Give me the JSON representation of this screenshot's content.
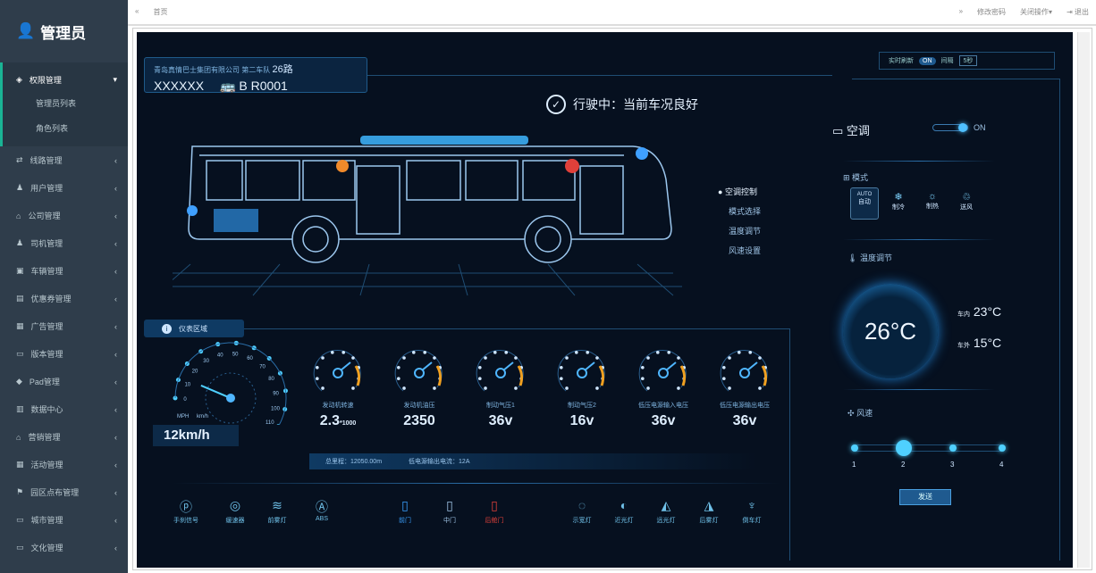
{
  "sidebar": {
    "brand": "管理员",
    "active": {
      "label": "权限管理",
      "children": [
        "管理员列表",
        "角色列表"
      ]
    },
    "items": [
      "线路管理",
      "用户管理",
      "公司管理",
      "司机管理",
      "车辆管理",
      "优惠券管理",
      "广告管理",
      "版本管理",
      "Pad管理",
      "数据中心",
      "营销管理",
      "活动管理",
      "园区点布管理",
      "城市管理",
      "文化管理"
    ]
  },
  "topbar": {
    "tab": "首页",
    "change_password": "修改密码",
    "close_ops": "关闭操作▾",
    "logout": "退出"
  },
  "vehicle": {
    "company": "青岛真情巴士集团有限公司",
    "team": "第二车队",
    "route": "26路",
    "driver": "XXXXXX",
    "plate": "B R0001"
  },
  "refresh": {
    "label": "实时刷新",
    "toggle": "ON",
    "interval_label": "间隔",
    "interval": "5秒"
  },
  "status": "行驶中：当前车况良好",
  "menu": [
    "空调控制",
    "模式选择",
    "温度调节",
    "风速设置"
  ],
  "section_title": "仪表区域",
  "speed": {
    "value": "12km/h",
    "units": [
      "MPH",
      "km/h"
    ],
    "ticks": [
      "0",
      "10",
      "20",
      "30",
      "40",
      "50",
      "60",
      "70",
      "80",
      "90",
      "100",
      "110",
      "120"
    ],
    "current": 12
  },
  "gauges": [
    {
      "label": "发动机转速",
      "value": "2.3",
      "unit": "*1000"
    },
    {
      "label": "发动机油压",
      "value": "2350",
      "unit": ""
    },
    {
      "label": "制动气压1",
      "value": "36v",
      "unit": ""
    },
    {
      "label": "制动气压2",
      "value": "16v",
      "unit": ""
    },
    {
      "label": "低压电源输入电压",
      "value": "36v",
      "unit": ""
    },
    {
      "label": "低压电源输出电压",
      "value": "36v",
      "unit": ""
    }
  ],
  "info": {
    "mileage": "总里程：12050.00m",
    "current": "低电源输出电流：12A"
  },
  "indicators": [
    {
      "label": "手刹信号",
      "icon": "handbrake-icon",
      "color": "#6fc0e8"
    },
    {
      "label": "缓速器",
      "icon": "retarder-icon",
      "color": "#6fc0e8"
    },
    {
      "label": "前雾灯",
      "icon": "fog-light-icon",
      "color": "#6fc0e8"
    },
    {
      "label": "ABS",
      "icon": "abs-icon",
      "color": "#6fc0e8"
    },
    {
      "label": "前门",
      "icon": "door-icon",
      "color": "#3aa0ff"
    },
    {
      "label": "中门",
      "icon": "door-icon",
      "color": "#9fc4e6"
    },
    {
      "label": "后舱门",
      "icon": "door-icon",
      "color": "#e0403a"
    },
    {
      "label": "示宽灯",
      "icon": "width-light-icon",
      "color": "#6fc0e8"
    },
    {
      "label": "近光灯",
      "icon": "low-beam-icon",
      "color": "#6fc0e8"
    },
    {
      "label": "远光灯",
      "icon": "high-beam-icon",
      "color": "#6fc0e8"
    },
    {
      "label": "后雾灯",
      "icon": "rear-fog-icon",
      "color": "#6fc0e8"
    },
    {
      "label": "倒车灯",
      "icon": "reverse-light-icon",
      "color": "#6fc0e8"
    }
  ],
  "ac": {
    "title": "空调",
    "power": "ON",
    "mode_title": "模式",
    "modes": [
      {
        "top": "AUTO",
        "label": "自动",
        "selected": true
      },
      {
        "top": "❄",
        "label": "制冷"
      },
      {
        "top": "☼",
        "label": "制热"
      },
      {
        "top": "♲",
        "label": "送风"
      }
    ],
    "temp_title": "温度调节",
    "set_temp": "26°C",
    "inside_label": "车内",
    "inside": "23°C",
    "outside_label": "车外",
    "outside": "15°C",
    "fan_title": "风速",
    "fan_levels": [
      "1",
      "2",
      "3",
      "4"
    ],
    "fan_selected": 2,
    "send": "发送"
  }
}
